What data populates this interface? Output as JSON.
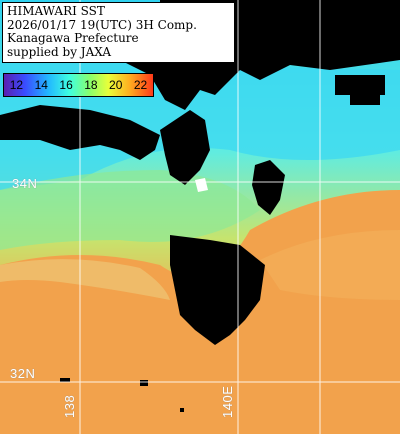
{
  "header": {
    "line1": "HIMAWARI SST",
    "line2": "2026/01/17 19(UTC) 3H Comp.",
    "line3": "Kanagawa Prefecture",
    "line4": "supplied by JAXA"
  },
  "legend": {
    "labels": [
      "12",
      "14",
      "16",
      "18",
      "20",
      "22"
    ]
  },
  "grid_labels": {
    "lat_34": "34N",
    "lat_32": "32N",
    "lon_138": "138",
    "lon_140": "140E"
  },
  "colors": {
    "land": "#000000",
    "cold_water": "#40e0e8",
    "mid_water": "#b8e070",
    "warm_water": "#f2a04a",
    "grid": "#ffffff"
  }
}
